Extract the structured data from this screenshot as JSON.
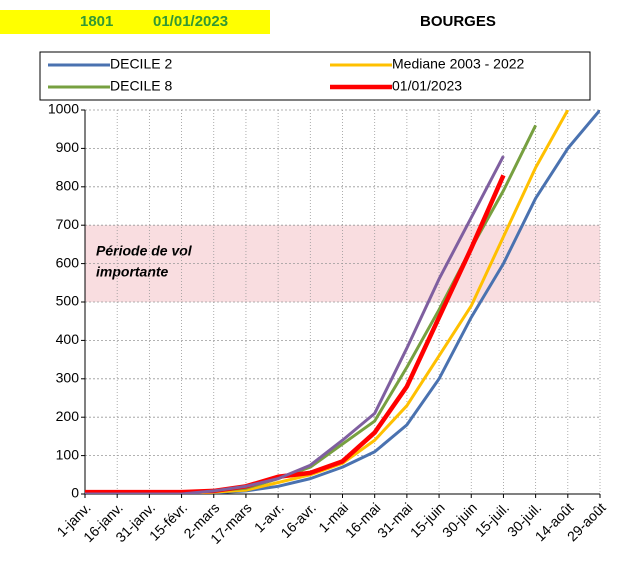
{
  "chart_data": {
    "type": "line",
    "header": {
      "code": "1801",
      "date": "01/01/2023",
      "station": "BOURGES"
    },
    "band": {
      "range": [
        500,
        700
      ],
      "label": [
        "Période de vol",
        "importante"
      ],
      "color": "#f9dde0"
    },
    "categories": [
      "1-janv.",
      "16-janv.",
      "31-janv.",
      "15-févr.",
      "2-mars",
      "17-mars",
      "1-avr.",
      "16-avr.",
      "1-mai",
      "16-mai",
      "31-mai",
      "15-juin",
      "30-juin",
      "15-juil.",
      "30-juil.",
      "14-août",
      "29-août"
    ],
    "series": [
      {
        "name": "DECILE 2",
        "color": "#4a72b0",
        "values": [
          0,
          0,
          0,
          0,
          3,
          8,
          20,
          40,
          70,
          110,
          180,
          300,
          460,
          600,
          770,
          900,
          1000
        ]
      },
      {
        "name": "Mediane 2003 - 2022",
        "color": "#ffc000",
        "values": [
          0,
          0,
          0,
          0,
          5,
          10,
          30,
          50,
          80,
          140,
          230,
          360,
          490,
          670,
          850,
          1000,
          null
        ]
      },
      {
        "name": "DECILE 8",
        "color": "#77a040",
        "values": [
          0,
          0,
          0,
          0,
          8,
          15,
          40,
          70,
          130,
          190,
          330,
          480,
          640,
          790,
          960,
          null,
          null
        ]
      },
      {
        "name": "01/01/2023",
        "color": "#ff0000",
        "values": [
          5,
          5,
          5,
          5,
          8,
          20,
          45,
          55,
          85,
          160,
          280,
          460,
          640,
          830,
          null,
          null,
          null
        ]
      },
      {
        "name": null,
        "color": "#7f5fa0",
        "values": [
          0,
          0,
          0,
          0,
          8,
          20,
          40,
          75,
          140,
          210,
          380,
          560,
          720,
          880,
          null,
          null,
          null
        ]
      }
    ],
    "ylim": [
      0,
      1000
    ],
    "yticks": [
      0,
      100,
      200,
      300,
      400,
      500,
      600,
      700,
      800,
      900,
      1000
    ],
    "grid": true
  }
}
